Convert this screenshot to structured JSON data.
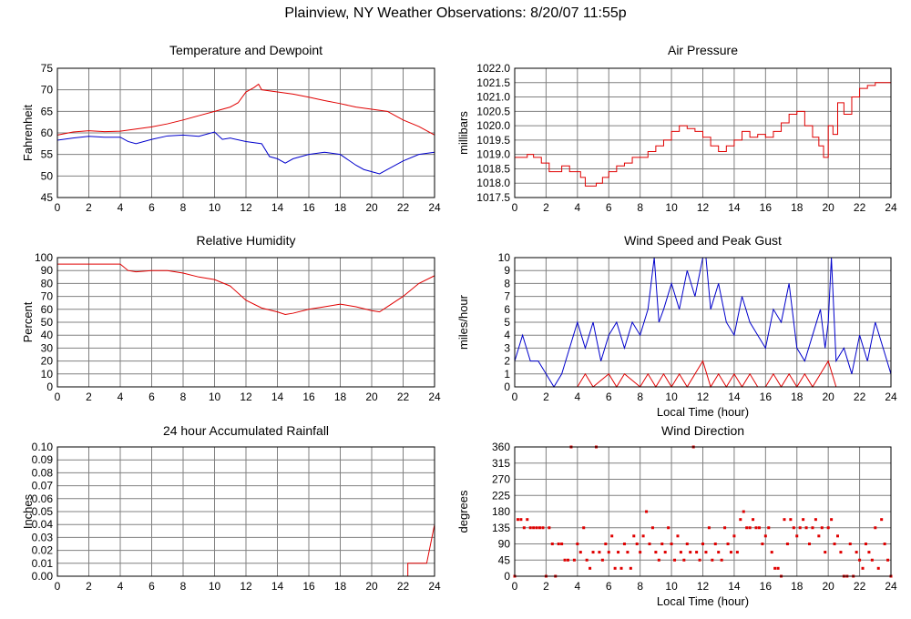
{
  "page": {
    "title": "Plainview, NY Weather Observations: 8/20/07 11:55p"
  },
  "colors": {
    "primary": "#e00000",
    "secondary": "#0000cc",
    "grid": "#808080",
    "frame": "#000000"
  },
  "chart_data": [
    {
      "id": "temperature",
      "type": "line",
      "title": "Temperature and Dewpoint",
      "ylabel": "Fahrenheit",
      "xlabel": "",
      "xlim": [
        0,
        24
      ],
      "ylim": [
        45,
        75
      ],
      "xticks": [
        0,
        2,
        4,
        6,
        8,
        10,
        12,
        14,
        16,
        18,
        20,
        22,
        24
      ],
      "yticks": [
        45,
        50,
        55,
        60,
        65,
        70,
        75
      ],
      "ytick_labels": [
        "45",
        "50",
        "55",
        "60",
        "65",
        "70",
        "75"
      ],
      "grid": true,
      "series": [
        {
          "color": "#e00000",
          "x": [
            0,
            1,
            2,
            3,
            4,
            5,
            6,
            7,
            8,
            9,
            10,
            11,
            11.5,
            12,
            12.5,
            12.8,
            13,
            14,
            15,
            16,
            17,
            18,
            19,
            20,
            21,
            22,
            23,
            24
          ],
          "y": [
            59.5,
            60.2,
            60.5,
            60.3,
            60.4,
            60.9,
            61.4,
            62.1,
            63.0,
            64.0,
            65.0,
            66.0,
            67.0,
            69.5,
            70.5,
            71.3,
            70.0,
            69.5,
            69.0,
            68.3,
            67.5,
            66.8,
            66.0,
            65.5,
            65.0,
            63.0,
            61.5,
            59.5
          ]
        },
        {
          "color": "#0000cc",
          "x": [
            0,
            1,
            2,
            3,
            4,
            4.5,
            5,
            6,
            7,
            8,
            9,
            10,
            10.5,
            11,
            12,
            13,
            13.5,
            14,
            14.5,
            15,
            16,
            17,
            18,
            19,
            19.5,
            20,
            20.5,
            21,
            22,
            23,
            24
          ],
          "y": [
            58.3,
            58.8,
            59.2,
            59.0,
            59.0,
            58.0,
            57.5,
            58.5,
            59.3,
            59.5,
            59.2,
            60.2,
            58.5,
            58.8,
            58.0,
            57.5,
            54.5,
            54.0,
            53.0,
            54.0,
            55.0,
            55.5,
            55.0,
            52.5,
            51.5,
            51.0,
            50.5,
            51.5,
            53.5,
            55.0,
            55.5
          ]
        }
      ]
    },
    {
      "id": "pressure",
      "type": "line",
      "title": "Air Pressure",
      "ylabel": "millibars",
      "xlabel": "",
      "xlim": [
        0,
        24
      ],
      "ylim": [
        1017.5,
        1022.0
      ],
      "xticks": [
        0,
        2,
        4,
        6,
        8,
        10,
        12,
        14,
        16,
        18,
        20,
        22,
        24
      ],
      "yticks": [
        1017.5,
        1018.0,
        1018.5,
        1019.0,
        1019.5,
        1020.0,
        1020.5,
        1021.0,
        1021.5,
        1022.0
      ],
      "ytick_labels": [
        "1017.5",
        "1018.0",
        "1018.5",
        "1019.0",
        "1019.5",
        "1020.0",
        "1020.5",
        "1021.0",
        "1021.5",
        "1022.0"
      ],
      "grid": true,
      "step": true,
      "series": [
        {
          "color": "#e00000",
          "x": [
            0,
            0.8,
            1.2,
            1.7,
            2.2,
            3.0,
            3.5,
            4.2,
            4.5,
            5.2,
            5.6,
            6.0,
            6.5,
            7.0,
            7.5,
            8.0,
            8.5,
            9.0,
            9.5,
            10.0,
            10.5,
            11.0,
            11.5,
            12.0,
            12.5,
            13.0,
            13.5,
            14.0,
            14.5,
            15.0,
            15.5,
            16.0,
            16.5,
            17.0,
            17.5,
            18.0,
            18.5,
            19.0,
            19.4,
            19.7,
            20.0,
            20.3,
            20.6,
            21.0,
            21.5,
            22.0,
            22.5,
            23.0,
            23.5,
            24.0
          ],
          "y": [
            1018.9,
            1019.0,
            1018.9,
            1018.7,
            1018.4,
            1018.6,
            1018.4,
            1018.2,
            1017.9,
            1018.0,
            1018.2,
            1018.4,
            1018.6,
            1018.7,
            1018.9,
            1018.9,
            1019.1,
            1019.3,
            1019.5,
            1019.8,
            1020.0,
            1019.9,
            1019.8,
            1019.6,
            1019.3,
            1019.1,
            1019.3,
            1019.5,
            1019.8,
            1019.6,
            1019.7,
            1019.6,
            1019.8,
            1020.1,
            1020.4,
            1020.5,
            1020.0,
            1019.6,
            1019.3,
            1018.9,
            1020.0,
            1019.7,
            1020.8,
            1020.4,
            1021.0,
            1021.3,
            1021.4,
            1021.5,
            1021.5,
            1021.7
          ]
        }
      ]
    },
    {
      "id": "humidity",
      "type": "line",
      "title": "Relative Humidity",
      "ylabel": "Percent",
      "xlabel": "",
      "xlim": [
        0,
        24
      ],
      "ylim": [
        0,
        100
      ],
      "xticks": [
        0,
        2,
        4,
        6,
        8,
        10,
        12,
        14,
        16,
        18,
        20,
        22,
        24
      ],
      "yticks": [
        0,
        10,
        20,
        30,
        40,
        50,
        60,
        70,
        80,
        90,
        100
      ],
      "ytick_labels": [
        "0",
        "10",
        "20",
        "30",
        "40",
        "50",
        "60",
        "70",
        "80",
        "90",
        "100"
      ],
      "grid": true,
      "series": [
        {
          "color": "#e00000",
          "x": [
            0,
            1,
            2,
            3,
            4,
            4.5,
            5,
            6,
            7,
            8,
            9,
            10,
            11,
            12,
            13,
            14,
            14.5,
            15,
            16,
            17,
            18,
            19,
            20,
            20.5,
            21,
            22,
            23,
            24
          ],
          "y": [
            95,
            95,
            95,
            95,
            95,
            90,
            89,
            90,
            90,
            88,
            85,
            83,
            78,
            67,
            61,
            58,
            56,
            57,
            60,
            62,
            64,
            62,
            59,
            58,
            62,
            70,
            80,
            86
          ]
        }
      ]
    },
    {
      "id": "wind",
      "type": "line",
      "title": "Wind Speed and Peak Gust",
      "ylabel": "miles/hour",
      "xlabel": "Local Time (hour)",
      "xlim": [
        0,
        24
      ],
      "ylim": [
        0,
        10
      ],
      "xticks": [
        0,
        2,
        4,
        6,
        8,
        10,
        12,
        14,
        16,
        18,
        20,
        22,
        24
      ],
      "yticks": [
        0,
        1,
        2,
        3,
        4,
        5,
        6,
        7,
        8,
        9,
        10
      ],
      "ytick_labels": [
        "0",
        "1",
        "2",
        "3",
        "4",
        "5",
        "6",
        "7",
        "8",
        "9",
        "10"
      ],
      "grid": true,
      "series": [
        {
          "color": "#0000cc",
          "x": [
            0,
            0.5,
            1,
            1.5,
            2,
            2.5,
            3,
            3.5,
            4,
            4.5,
            5,
            5.5,
            6,
            6.5,
            7,
            7.5,
            8,
            8.5,
            8.9,
            9.2,
            9.5,
            10,
            10.5,
            11,
            11.5,
            12,
            12.2,
            12.5,
            13,
            13.5,
            14,
            14.5,
            15,
            15.5,
            16,
            16.5,
            17,
            17.5,
            18,
            18.5,
            19,
            19.5,
            19.8,
            20,
            20.2,
            20.5,
            21,
            21.5,
            22,
            22.5,
            23,
            23.5,
            24
          ],
          "y": [
            2,
            4,
            2,
            2,
            1,
            0,
            1,
            3,
            5,
            3,
            5,
            2,
            4,
            5,
            3,
            5,
            4,
            6,
            10,
            5,
            6,
            8,
            6,
            9,
            7,
            10,
            10,
            6,
            8,
            5,
            4,
            7,
            5,
            4,
            3,
            6,
            5,
            8,
            3,
            2,
            4,
            6,
            3,
            5,
            10,
            2,
            3,
            1,
            4,
            2,
            5,
            3,
            1
          ]
        },
        {
          "color": "#e00000",
          "x": [
            0,
            2,
            4,
            4.5,
            5,
            6,
            6.5,
            7,
            8,
            8.5,
            9,
            9.5,
            10,
            10.5,
            11,
            11.5,
            12,
            12.5,
            13,
            13.5,
            14,
            14.5,
            15,
            15.5,
            16,
            16.5,
            17,
            17.5,
            18,
            18.5,
            19,
            19.5,
            20,
            20.5,
            21,
            22,
            23,
            24
          ],
          "y": [
            0,
            0,
            0,
            1,
            0,
            1,
            0,
            1,
            0,
            1,
            0,
            1,
            0,
            1,
            0,
            1,
            2,
            0,
            1,
            0,
            1,
            0,
            1,
            0,
            0,
            1,
            0,
            1,
            0,
            1,
            0,
            1,
            2,
            0,
            0,
            0,
            0,
            0
          ]
        }
      ]
    },
    {
      "id": "rainfall",
      "type": "line",
      "title": "24 hour Accumulated Rainfall",
      "ylabel": "Inches",
      "xlabel": "",
      "xlim": [
        0,
        24
      ],
      "ylim": [
        0,
        0.1
      ],
      "xticks": [
        0,
        2,
        4,
        6,
        8,
        10,
        12,
        14,
        16,
        18,
        20,
        22,
        24
      ],
      "yticks": [
        0,
        0.01,
        0.02,
        0.03,
        0.04,
        0.05,
        0.06,
        0.07,
        0.08,
        0.09,
        0.1
      ],
      "ytick_labels": [
        "0.00",
        "0.01",
        "0.02",
        "0.03",
        "0.04",
        "0.05",
        "0.06",
        "0.07",
        "0.08",
        "0.09",
        "0.10"
      ],
      "grid": true,
      "series": [
        {
          "color": "#e00000",
          "x": [
            0,
            22.3,
            22.3,
            23.5,
            24
          ],
          "y": [
            0,
            0,
            0.01,
            0.01,
            0.04
          ]
        }
      ]
    },
    {
      "id": "direction",
      "type": "scatter",
      "title": "Wind Direction",
      "ylabel": "degrees",
      "xlabel": "Local Time (hour)",
      "xlim": [
        0,
        24
      ],
      "ylim": [
        0,
        360
      ],
      "xticks": [
        0,
        2,
        4,
        6,
        8,
        10,
        12,
        14,
        16,
        18,
        20,
        22,
        24
      ],
      "yticks": [
        0,
        45,
        90,
        135,
        180,
        225,
        270,
        315,
        360
      ],
      "ytick_labels": [
        "0",
        "45",
        "90",
        "135",
        "180",
        "225",
        "270",
        "315",
        "360"
      ],
      "grid": true,
      "series": [
        {
          "color": "#e00000",
          "x": [
            0,
            0.2,
            0.4,
            0.6,
            0.8,
            1.0,
            1.2,
            1.4,
            1.6,
            1.8,
            2.0,
            2.2,
            2.4,
            2.6,
            2.8,
            3.0,
            3.2,
            3.4,
            3.6,
            3.8,
            4.0,
            4.2,
            4.4,
            4.6,
            4.8,
            5.0,
            5.2,
            5.4,
            5.6,
            5.8,
            6.0,
            6.2,
            6.4,
            6.6,
            6.8,
            7.0,
            7.2,
            7.4,
            7.6,
            7.8,
            8.0,
            8.2,
            8.4,
            8.6,
            8.8,
            9.0,
            9.2,
            9.4,
            9.6,
            9.8,
            10.0,
            10.2,
            10.4,
            10.6,
            10.8,
            11.0,
            11.2,
            11.4,
            11.6,
            11.8,
            12.0,
            12.2,
            12.4,
            12.6,
            12.8,
            13.0,
            13.2,
            13.4,
            13.6,
            13.8,
            14.0,
            14.2,
            14.4,
            14.6,
            14.8,
            15.0,
            15.2,
            15.4,
            15.6,
            15.8,
            16.0,
            16.2,
            16.4,
            16.6,
            16.8,
            17.0,
            17.2,
            17.4,
            17.6,
            17.8,
            18.0,
            18.2,
            18.4,
            18.6,
            18.8,
            19.0,
            19.2,
            19.4,
            19.6,
            19.8,
            20.0,
            20.2,
            20.4,
            20.6,
            20.8,
            21.0,
            21.2,
            21.4,
            21.6,
            21.8,
            22.0,
            22.2,
            22.4,
            22.6,
            22.8,
            23.0,
            23.2,
            23.4,
            23.6,
            23.8,
            24.0
          ],
          "y": [
            0,
            158,
            158,
            135,
            158,
            135,
            135,
            135,
            135,
            135,
            0,
            135,
            90,
            0,
            90,
            90,
            45,
            45,
            360,
            45,
            90,
            67,
            135,
            45,
            22,
            67,
            360,
            67,
            45,
            90,
            67,
            112,
            22,
            67,
            22,
            90,
            67,
            22,
            112,
            90,
            67,
            112,
            180,
            90,
            135,
            67,
            45,
            90,
            67,
            135,
            90,
            45,
            112,
            67,
            45,
            90,
            67,
            360,
            67,
            45,
            90,
            67,
            135,
            45,
            90,
            67,
            45,
            135,
            90,
            67,
            112,
            67,
            158,
            180,
            135,
            135,
            158,
            135,
            135,
            90,
            112,
            135,
            67,
            22,
            22,
            0,
            158,
            90,
            158,
            135,
            112,
            135,
            158,
            135,
            90,
            135,
            158,
            112,
            135,
            67,
            135,
            158,
            90,
            112,
            67,
            0,
            0,
            90,
            0,
            67,
            45,
            22,
            90,
            67,
            45,
            135,
            22,
            158,
            90,
            45,
            0
          ]
        }
      ]
    }
  ]
}
